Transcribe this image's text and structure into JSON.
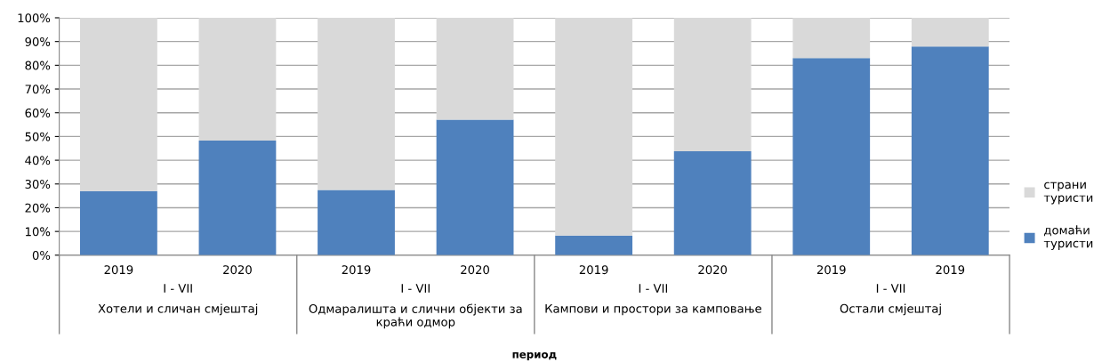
{
  "chart_data": {
    "type": "bar",
    "stacked": true,
    "categories": [
      "2019",
      "2020",
      "2019",
      "2020",
      "2019",
      "2020",
      "2019",
      "2019"
    ],
    "annotations": [
      "I - VII",
      "I - VII",
      "I - VII",
      "I - VII",
      "Хотели и сличан смјештај",
      "Одмаралишта и слични објекти за краћи одмор",
      "Кампови и простори за камповање",
      "Остали смјештај",
      "период"
    ],
    "series": [
      {
        "name": "домаћи туристи",
        "color": "#4f81bd",
        "values": [
          27,
          48.3,
          27.5,
          57.1,
          8.3,
          43.8,
          83,
          87.9
        ]
      },
      {
        "name": "страни туристи",
        "color": "#d9d9d9",
        "values": [
          73,
          51.7,
          72.5,
          42.9,
          91.7,
          56.2,
          17,
          12.1
        ]
      }
    ],
    "ylim": [
      0,
      100
    ],
    "yticks": [
      {
        "value": 0,
        "label": "0%"
      },
      {
        "value": 10,
        "label": "10%"
      },
      {
        "value": 20,
        "label": "20%"
      },
      {
        "value": 30,
        "label": "30%"
      },
      {
        "value": 40,
        "label": "40%"
      },
      {
        "value": 50,
        "label": "50%"
      },
      {
        "value": 60,
        "label": "60%"
      },
      {
        "value": 70,
        "label": "70%"
      },
      {
        "value": 80,
        "label": "80%"
      },
      {
        "value": 90,
        "label": "90%"
      },
      {
        "value": 100,
        "label": "100%"
      }
    ],
    "grid": "y",
    "legend": "right"
  }
}
